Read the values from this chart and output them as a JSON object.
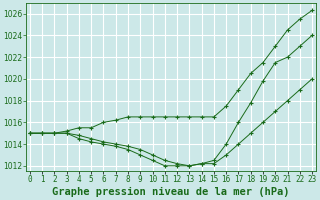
{
  "title": "Graphe pression niveau de la mer (hPa)",
  "xlabel_hours": [
    0,
    1,
    2,
    3,
    4,
    5,
    6,
    7,
    8,
    9,
    10,
    11,
    12,
    13,
    14,
    15,
    16,
    17,
    18,
    19,
    20,
    21,
    22,
    23
  ],
  "series": [
    [
      1015.0,
      1015.0,
      1015.0,
      1015.2,
      1015.5,
      1015.5,
      1016.0,
      1016.2,
      1016.5,
      1016.5,
      1016.5,
      1016.5,
      1016.5,
      1016.5,
      1016.5,
      1016.5,
      1017.5,
      1019.0,
      1020.5,
      1021.5,
      1023.0,
      1024.5,
      1025.5,
      1026.3
    ],
    [
      1015.0,
      1015.0,
      1015.0,
      1015.0,
      1014.8,
      1014.5,
      1014.2,
      1014.0,
      1013.8,
      1013.5,
      1013.0,
      1012.5,
      1012.2,
      1012.0,
      1012.2,
      1012.5,
      1014.0,
      1016.0,
      1017.8,
      1019.8,
      1021.5,
      1022.0,
      1023.0,
      1024.0
    ],
    [
      1015.0,
      1015.0,
      1015.0,
      1015.0,
      1014.5,
      1014.2,
      1014.0,
      1013.8,
      1013.5,
      1013.0,
      1012.5,
      1012.0,
      1012.0,
      1012.0,
      1012.2,
      1012.2,
      1013.0,
      1014.0,
      1015.0,
      1016.0,
      1017.0,
      1018.0,
      1019.0,
      1020.0
    ]
  ],
  "line_color": "#1a6b1a",
  "bg_color": "#cce8e8",
  "grid_color": "#b8d8d8",
  "ylim": [
    1011.5,
    1027.0
  ],
  "yticks": [
    1012,
    1014,
    1016,
    1018,
    1020,
    1022,
    1024,
    1026
  ],
  "xlim": [
    -0.3,
    23.3
  ],
  "title_fontsize": 7.5,
  "tick_fontsize": 5.5,
  "figwidth": 3.2,
  "figheight": 2.0,
  "dpi": 100
}
